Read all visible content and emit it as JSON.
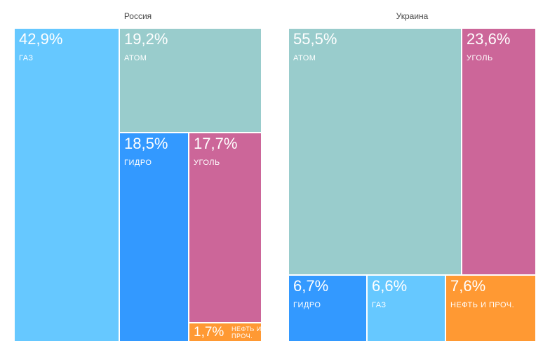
{
  "chart_data": [
    {
      "type": "treemap",
      "title": "Россия",
      "series": [
        {
          "label": "ГАЗ",
          "value": 42.9,
          "value_text": "42,9%",
          "color": "#66c8ff"
        },
        {
          "label": "АТОМ",
          "value": 19.2,
          "value_text": "19,2%",
          "color": "#99cccc"
        },
        {
          "label": "ГИДРО",
          "value": 18.5,
          "value_text": "18,5%",
          "color": "#3399ff"
        },
        {
          "label": "УГОЛЬ",
          "value": 17.7,
          "value_text": "17,7%",
          "color": "#cc6699"
        },
        {
          "label": "НЕФТЬ И ПРОЧ.",
          "value": 1.7,
          "value_text": "1,7%",
          "color": "#ff9933"
        }
      ]
    },
    {
      "type": "treemap",
      "title": "Украина",
      "series": [
        {
          "label": "АТОМ",
          "value": 55.5,
          "value_text": "55,5%",
          "color": "#99cccc"
        },
        {
          "label": "УГОЛЬ",
          "value": 23.6,
          "value_text": "23,6%",
          "color": "#cc6699"
        },
        {
          "label": "ГИДРО",
          "value": 6.7,
          "value_text": "6,7%",
          "color": "#3399ff"
        },
        {
          "label": "ГАЗ",
          "value": 6.6,
          "value_text": "6,6%",
          "color": "#66c8ff"
        },
        {
          "label": "НЕФТЬ И ПРОЧ.",
          "value": 7.6,
          "value_text": "7,6%",
          "color": "#ff9933"
        }
      ]
    }
  ]
}
